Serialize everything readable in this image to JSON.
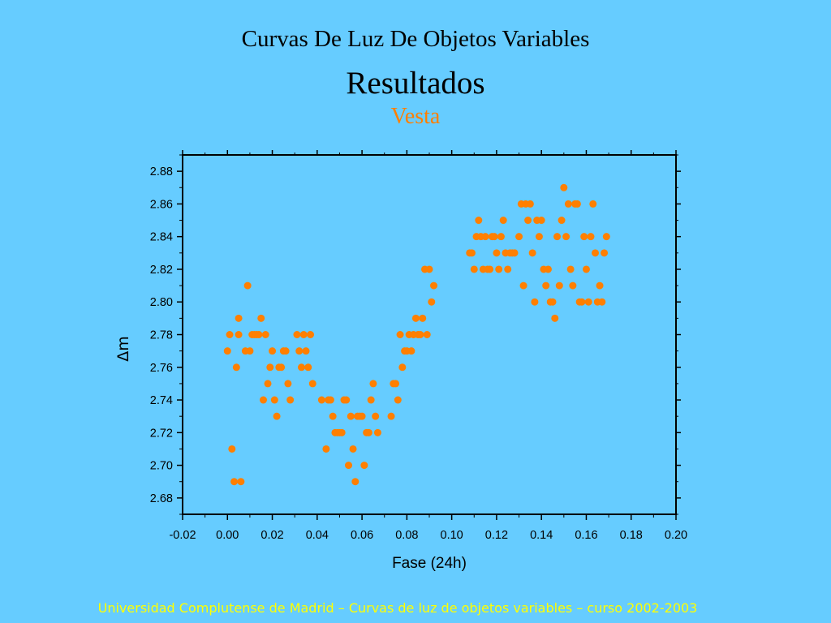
{
  "slide": {
    "title": "Curvas De Luz De Objetos Variables",
    "subtitle": "Resultados",
    "object_name": "Vesta",
    "footer": "Universidad Complutense de Madrid – Curvas de luz de objetos variables  – curso 2002-2003"
  },
  "colors": {
    "background": "#66CCFF",
    "points": "#FF7F00",
    "object_name": "#FF7F00",
    "footer": "#FFFF00"
  },
  "chart_data": {
    "type": "scatter",
    "xlabel": "Fase (24h)",
    "ylabel": "Δm",
    "xlim": [
      -0.02,
      0.2
    ],
    "ylim": [
      2.67,
      2.89
    ],
    "xticks": [
      "-0.02",
      "0.00",
      "0.02",
      "0.04",
      "0.06",
      "0.08",
      "0.10",
      "0.12",
      "0.14",
      "0.16",
      "0.18",
      "0.20"
    ],
    "yticks": [
      "2.68",
      "2.70",
      "2.72",
      "2.74",
      "2.76",
      "2.78",
      "2.80",
      "2.82",
      "2.84",
      "2.86",
      "2.88"
    ],
    "legend": "none",
    "grid": false,
    "points": [
      [
        0.0,
        2.77
      ],
      [
        0.001,
        2.78
      ],
      [
        0.002,
        2.71
      ],
      [
        0.003,
        2.69
      ],
      [
        0.004,
        2.76
      ],
      [
        0.005,
        2.78
      ],
      [
        0.005,
        2.79
      ],
      [
        0.006,
        2.69
      ],
      [
        0.008,
        2.77
      ],
      [
        0.009,
        2.81
      ],
      [
        0.01,
        2.77
      ],
      [
        0.011,
        2.78
      ],
      [
        0.012,
        2.78
      ],
      [
        0.013,
        2.78
      ],
      [
        0.014,
        2.78
      ],
      [
        0.015,
        2.79
      ],
      [
        0.016,
        2.74
      ],
      [
        0.017,
        2.78
      ],
      [
        0.018,
        2.75
      ],
      [
        0.019,
        2.76
      ],
      [
        0.02,
        2.77
      ],
      [
        0.021,
        2.74
      ],
      [
        0.022,
        2.73
      ],
      [
        0.023,
        2.76
      ],
      [
        0.024,
        2.76
      ],
      [
        0.025,
        2.77
      ],
      [
        0.026,
        2.77
      ],
      [
        0.027,
        2.75
      ],
      [
        0.028,
        2.74
      ],
      [
        0.031,
        2.78
      ],
      [
        0.032,
        2.77
      ],
      [
        0.033,
        2.76
      ],
      [
        0.034,
        2.78
      ],
      [
        0.035,
        2.77
      ],
      [
        0.036,
        2.76
      ],
      [
        0.037,
        2.78
      ],
      [
        0.038,
        2.75
      ],
      [
        0.042,
        2.74
      ],
      [
        0.044,
        2.71
      ],
      [
        0.045,
        2.74
      ],
      [
        0.046,
        2.74
      ],
      [
        0.047,
        2.73
      ],
      [
        0.048,
        2.72
      ],
      [
        0.049,
        2.72
      ],
      [
        0.05,
        2.72
      ],
      [
        0.051,
        2.72
      ],
      [
        0.052,
        2.74
      ],
      [
        0.053,
        2.74
      ],
      [
        0.054,
        2.7
      ],
      [
        0.055,
        2.73
      ],
      [
        0.056,
        2.71
      ],
      [
        0.057,
        2.69
      ],
      [
        0.058,
        2.73
      ],
      [
        0.059,
        2.73
      ],
      [
        0.06,
        2.73
      ],
      [
        0.061,
        2.7
      ],
      [
        0.062,
        2.72
      ],
      [
        0.063,
        2.72
      ],
      [
        0.064,
        2.74
      ],
      [
        0.065,
        2.75
      ],
      [
        0.066,
        2.73
      ],
      [
        0.067,
        2.72
      ],
      [
        0.073,
        2.73
      ],
      [
        0.074,
        2.75
      ],
      [
        0.075,
        2.75
      ],
      [
        0.076,
        2.74
      ],
      [
        0.077,
        2.78
      ],
      [
        0.078,
        2.76
      ],
      [
        0.079,
        2.77
      ],
      [
        0.08,
        2.77
      ],
      [
        0.081,
        2.78
      ],
      [
        0.082,
        2.77
      ],
      [
        0.083,
        2.78
      ],
      [
        0.084,
        2.79
      ],
      [
        0.085,
        2.78
      ],
      [
        0.086,
        2.78
      ],
      [
        0.087,
        2.79
      ],
      [
        0.088,
        2.82
      ],
      [
        0.089,
        2.78
      ],
      [
        0.09,
        2.82
      ],
      [
        0.091,
        2.8
      ],
      [
        0.092,
        2.81
      ],
      [
        0.108,
        2.83
      ],
      [
        0.109,
        2.83
      ],
      [
        0.11,
        2.82
      ],
      [
        0.111,
        2.84
      ],
      [
        0.112,
        2.85
      ],
      [
        0.113,
        2.84
      ],
      [
        0.114,
        2.82
      ],
      [
        0.115,
        2.84
      ],
      [
        0.116,
        2.82
      ],
      [
        0.117,
        2.82
      ],
      [
        0.118,
        2.84
      ],
      [
        0.119,
        2.84
      ],
      [
        0.12,
        2.83
      ],
      [
        0.121,
        2.82
      ],
      [
        0.122,
        2.84
      ],
      [
        0.123,
        2.85
      ],
      [
        0.124,
        2.83
      ],
      [
        0.125,
        2.82
      ],
      [
        0.126,
        2.83
      ],
      [
        0.127,
        2.83
      ],
      [
        0.128,
        2.83
      ],
      [
        0.13,
        2.84
      ],
      [
        0.131,
        2.86
      ],
      [
        0.132,
        2.81
      ],
      [
        0.133,
        2.86
      ],
      [
        0.134,
        2.85
      ],
      [
        0.135,
        2.86
      ],
      [
        0.136,
        2.83
      ],
      [
        0.137,
        2.8
      ],
      [
        0.138,
        2.85
      ],
      [
        0.139,
        2.84
      ],
      [
        0.14,
        2.85
      ],
      [
        0.141,
        2.82
      ],
      [
        0.142,
        2.81
      ],
      [
        0.143,
        2.82
      ],
      [
        0.144,
        2.8
      ],
      [
        0.145,
        2.8
      ],
      [
        0.146,
        2.79
      ],
      [
        0.147,
        2.84
      ],
      [
        0.148,
        2.81
      ],
      [
        0.149,
        2.85
      ],
      [
        0.15,
        2.87
      ],
      [
        0.151,
        2.84
      ],
      [
        0.152,
        2.86
      ],
      [
        0.153,
        2.82
      ],
      [
        0.154,
        2.81
      ],
      [
        0.155,
        2.86
      ],
      [
        0.156,
        2.86
      ],
      [
        0.157,
        2.8
      ],
      [
        0.158,
        2.8
      ],
      [
        0.159,
        2.84
      ],
      [
        0.16,
        2.82
      ],
      [
        0.161,
        2.8
      ],
      [
        0.162,
        2.84
      ],
      [
        0.163,
        2.86
      ],
      [
        0.164,
        2.83
      ],
      [
        0.165,
        2.8
      ],
      [
        0.166,
        2.81
      ],
      [
        0.167,
        2.8
      ],
      [
        0.168,
        2.83
      ],
      [
        0.169,
        2.84
      ]
    ]
  }
}
